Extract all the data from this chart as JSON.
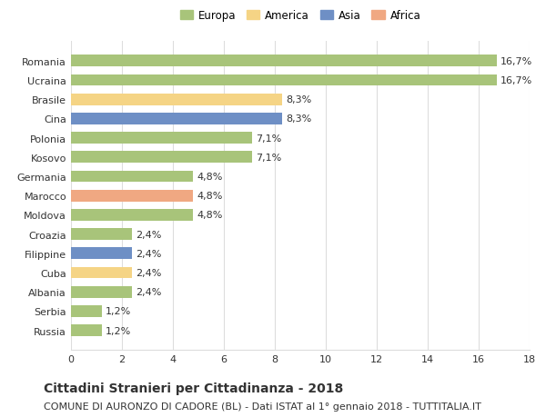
{
  "countries": [
    "Romania",
    "Ucraina",
    "Brasile",
    "Cina",
    "Polonia",
    "Kosovo",
    "Germania",
    "Marocco",
    "Moldova",
    "Croazia",
    "Filippine",
    "Cuba",
    "Albania",
    "Serbia",
    "Russia"
  ],
  "values": [
    16.7,
    16.7,
    8.3,
    8.3,
    7.1,
    7.1,
    4.8,
    4.8,
    4.8,
    2.4,
    2.4,
    2.4,
    2.4,
    1.2,
    1.2
  ],
  "labels": [
    "16,7%",
    "16,7%",
    "8,3%",
    "8,3%",
    "7,1%",
    "7,1%",
    "4,8%",
    "4,8%",
    "4,8%",
    "2,4%",
    "2,4%",
    "2,4%",
    "2,4%",
    "1,2%",
    "1,2%"
  ],
  "continents": [
    "Europa",
    "Europa",
    "America",
    "Asia",
    "Europa",
    "Europa",
    "Europa",
    "Africa",
    "Europa",
    "Europa",
    "Asia",
    "America",
    "Europa",
    "Europa",
    "Europa"
  ],
  "colors": {
    "Europa": "#a8c47a",
    "America": "#f5d485",
    "Asia": "#6e8fc5",
    "Africa": "#f0a882"
  },
  "legend_order": [
    "Europa",
    "America",
    "Asia",
    "Africa"
  ],
  "xlim": [
    0,
    18
  ],
  "xticks": [
    0,
    2,
    4,
    6,
    8,
    10,
    12,
    14,
    16,
    18
  ],
  "title": "Cittadini Stranieri per Cittadinanza - 2018",
  "subtitle": "COMUNE DI AURONZO DI CADORE (BL) - Dati ISTAT al 1° gennaio 2018 - TUTTITALIA.IT",
  "title_fontsize": 10,
  "subtitle_fontsize": 8,
  "label_fontsize": 8,
  "tick_fontsize": 8,
  "legend_fontsize": 8.5,
  "bar_height": 0.6,
  "background_color": "#ffffff",
  "grid_color": "#dddddd",
  "text_color": "#333333"
}
